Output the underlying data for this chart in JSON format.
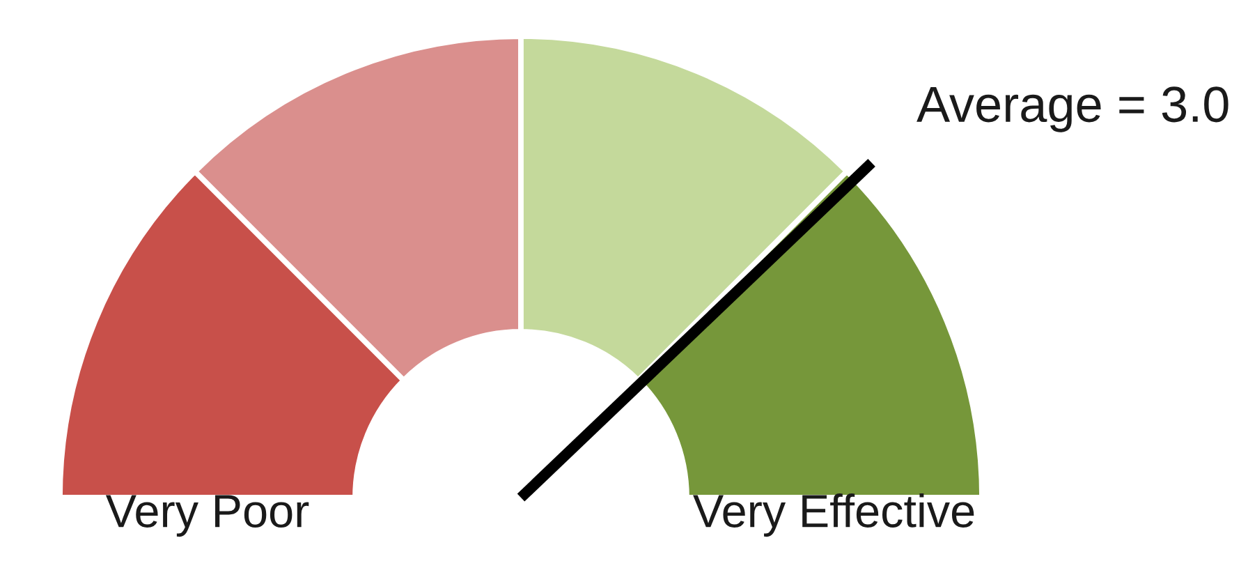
{
  "chart_data": {
    "type": "donut",
    "categories": [
      "Very Poor",
      null,
      null,
      "Very Effective"
    ],
    "values": [
      25,
      25,
      25,
      25
    ],
    "colors": [
      "#c8504a",
      "#da8f8d",
      "#c4d99b",
      "#76973a"
    ],
    "needle": "Very Effective",
    "annotations": [
      "Average = 3.0"
    ]
  }
}
